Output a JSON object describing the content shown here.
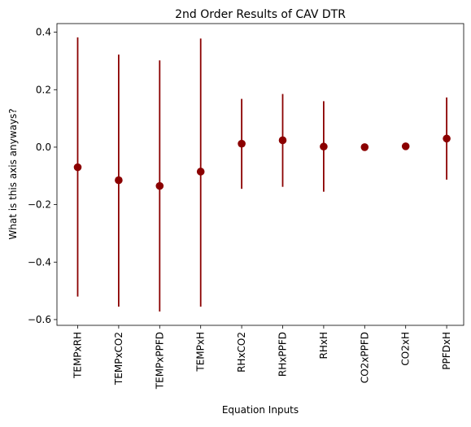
{
  "chart_data": {
    "type": "scatter",
    "title": "2nd Order Results of CAV DTR",
    "xlabel": "Equation Inputs",
    "ylabel": "What is this axis anyways?",
    "categories": [
      "TEMPxRH",
      "TEMPxCO2",
      "TEMPxPPFD",
      "TEMPxH",
      "RHxCO2",
      "RHxPPFD",
      "RHxH",
      "CO2xPPFD",
      "CO2xH",
      "PPFDxH"
    ],
    "values": [
      -0.07,
      -0.115,
      -0.135,
      -0.085,
      0.012,
      0.024,
      0.002,
      0.0,
      0.003,
      0.03
    ],
    "error_lower": [
      -0.52,
      -0.555,
      -0.572,
      -0.555,
      -0.145,
      -0.138,
      -0.155,
      0.0,
      0.003,
      -0.113
    ],
    "error_upper": [
      0.382,
      0.322,
      0.302,
      0.378,
      0.168,
      0.185,
      0.16,
      0.0,
      0.003,
      0.173
    ],
    "ylim": [
      -0.62,
      0.43
    ],
    "yticks": [
      -0.6,
      -0.4,
      -0.2,
      0.0,
      0.2,
      0.4
    ],
    "ytick_labels": [
      "−0.6",
      "−0.4",
      "−0.2",
      "0.0",
      "0.2",
      "0.4"
    ],
    "grid": false,
    "color": "#8b0000"
  }
}
